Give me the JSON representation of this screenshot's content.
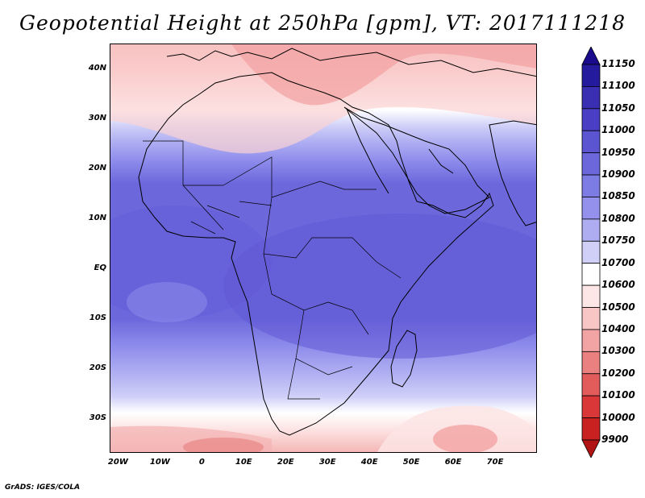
{
  "title": "Geopotential Height at 250hPa [gpm], VT: 2017111218",
  "credit": "GrADS: IGES/COLA",
  "map": {
    "lon_range": [
      -22,
      80
    ],
    "lat_range": [
      -37,
      45
    ],
    "lat_labels": [
      {
        "lat": 40,
        "label": "40N"
      },
      {
        "lat": 30,
        "label": "30N"
      },
      {
        "lat": 20,
        "label": "20N"
      },
      {
        "lat": 10,
        "label": "10N"
      },
      {
        "lat": 0,
        "label": "EQ"
      },
      {
        "lat": -10,
        "label": "10S"
      },
      {
        "lat": -20,
        "label": "20S"
      },
      {
        "lat": -30,
        "label": "30S"
      }
    ],
    "lon_labels": [
      {
        "lon": -20,
        "label": "20W"
      },
      {
        "lon": -10,
        "label": "10W"
      },
      {
        "lon": 0,
        "label": "0"
      },
      {
        "lon": 10,
        "label": "10E"
      },
      {
        "lon": 20,
        "label": "20E"
      },
      {
        "lon": 30,
        "label": "30E"
      },
      {
        "lon": 40,
        "label": "40E"
      },
      {
        "lon": 50,
        "label": "50E"
      },
      {
        "lon": 60,
        "label": "60E"
      },
      {
        "lon": 70,
        "label": "70E"
      }
    ]
  },
  "colorbar": {
    "labels": [
      "11150",
      "11100",
      "11050",
      "11000",
      "10950",
      "10900",
      "10850",
      "10800",
      "10750",
      "10700",
      "10600",
      "10500",
      "10400",
      "10300",
      "10200",
      "10100",
      "10000",
      "9900"
    ],
    "colors": [
      "#1a0a8c",
      "#241a9e",
      "#3a2fb2",
      "#4a3fc4",
      "#5b55d2",
      "#6c68dc",
      "#7d7be4",
      "#9391ec",
      "#aeadf2",
      "#cfcff8",
      "#ffffff",
      "#fde6e6",
      "#f9c6c6",
      "#f2a3a3",
      "#ea8080",
      "#e35c5c",
      "#da3838",
      "#c92020",
      "#b01414"
    ]
  },
  "field": {
    "levels_from_south": [
      {
        "lat": -37,
        "value": 10500
      },
      {
        "lat": -33,
        "value": 10650
      },
      {
        "lat": -29,
        "value": 10750
      },
      {
        "lat": -25,
        "value": 10800
      },
      {
        "lat": -20,
        "value": 10850
      },
      {
        "lat": -14,
        "value": 10900
      },
      {
        "lat": 14,
        "value": 10900
      },
      {
        "lat": 19,
        "value": 10850
      },
      {
        "lat": 23,
        "value": 10800
      },
      {
        "lat": 27,
        "value": 10750
      },
      {
        "lat": 31,
        "value": 10650
      },
      {
        "lat": 36,
        "value": 10500
      },
      {
        "lat": 45,
        "value": 10400
      }
    ]
  }
}
